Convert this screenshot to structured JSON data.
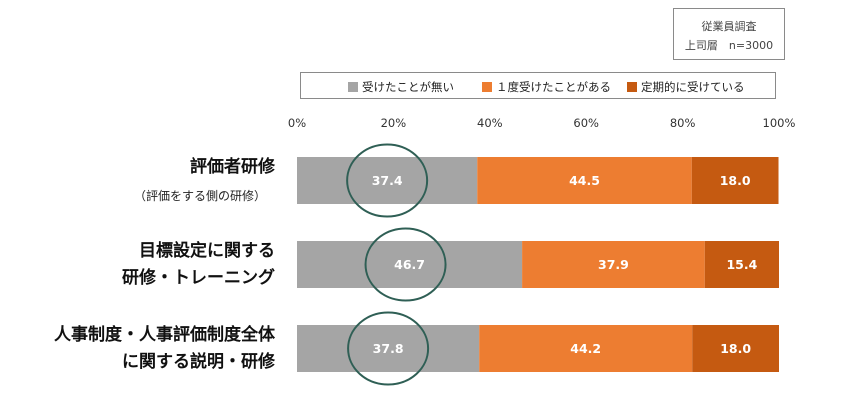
{
  "survey_box": {
    "line1": "従業員調査",
    "line2": "上司層　n=3000"
  },
  "chart_data": {
    "type": "bar",
    "orientation": "horizontal",
    "stacked": true,
    "xlim": [
      0,
      100
    ],
    "ticks": [
      "0%",
      "20%",
      "40%",
      "60%",
      "80%",
      "100%"
    ],
    "grid": false,
    "legend_position": "top",
    "categories": [
      {
        "lines": [
          "評価者研修"
        ],
        "sub": "（評価をする側の研修）"
      },
      {
        "lines": [
          "目標設定に関する",
          "研修・トレーニング"
        ],
        "sub": ""
      },
      {
        "lines": [
          "人事制度・人事評価制度全体",
          "に関する説明・研修"
        ],
        "sub": ""
      }
    ],
    "series": [
      {
        "name": "受けたことが無い",
        "color": "#a5a5a5",
        "values": [
          37.4,
          46.7,
          37.8
        ]
      },
      {
        "name": "１度受けたことがある",
        "color": "#ed7d31",
        "values": [
          44.5,
          37.9,
          44.2
        ]
      },
      {
        "name": "定期的に受けている",
        "color": "#c55a11",
        "values": [
          18.0,
          15.4,
          18.0
        ]
      }
    ],
    "highlight_circle_color": "#2f5f55"
  }
}
